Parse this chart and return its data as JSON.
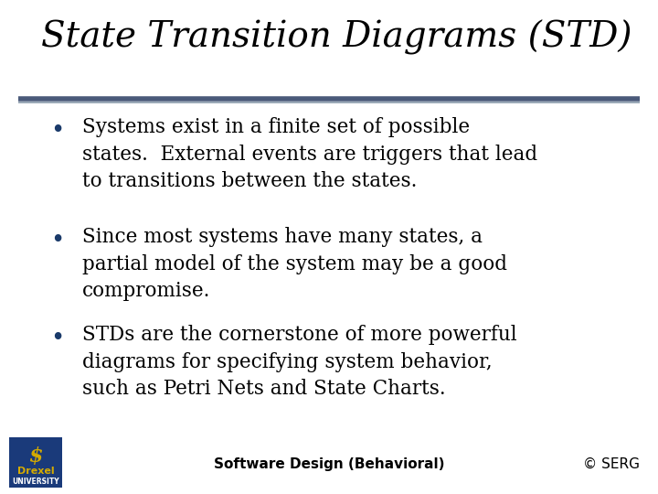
{
  "title": "State Transition Diagrams (STD)",
  "title_fontsize": 28,
  "title_color": "#000000",
  "title_style": "italic",
  "title_font": "serif",
  "separator_color": "#4a5a7a",
  "separator_lw": 4.0,
  "slide_bg": "#ffffff",
  "bullet_color": "#1a3a6a",
  "bullet_fontsize": 15.5,
  "bullet_font": "serif",
  "bullets": [
    "Systems exist in a finite set of possible\nstates.  External events are triggers that lead\nto transitions between the states.",
    "Since most systems have many states, a\npartial model of the system may be a good\ncompromise.",
    "STDs are the cornerstone of more powerful\ndiagrams for specifying system behavior,\nsuch as Petri Nets and State Charts."
  ],
  "footer_center": "Software Design (Behavioral)",
  "footer_right": "© SERG",
  "footer_fontsize": 11,
  "logo_bg": "#1a3a7a",
  "logo_text_color": "#d4aa00",
  "logo_label": "Drexel",
  "logo_sublabel": "UNIVERSITY"
}
